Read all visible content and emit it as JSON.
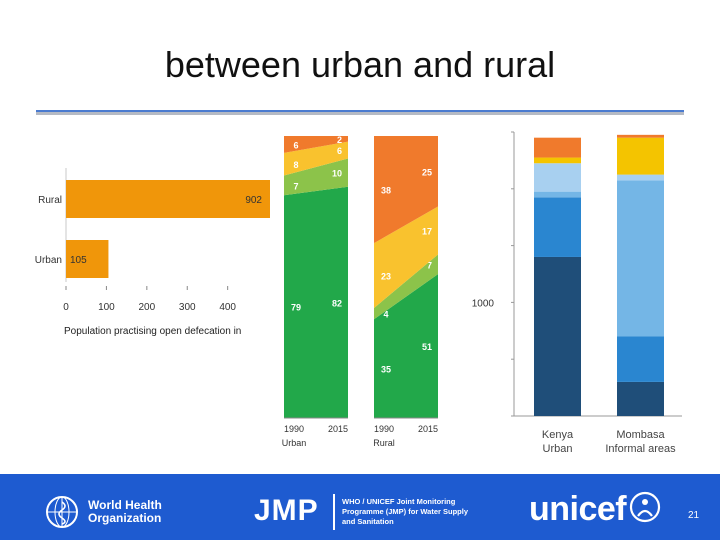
{
  "title": "between urban and rural",
  "caption": "Population practising open defecation in",
  "page_number": "21",
  "footer": {
    "who_line1": "World Health",
    "who_line2": "Organization",
    "jmp": "JMP",
    "jmp_desc": "WHO / UNICEF Joint Monitoring Programme (JMP) for Water Supply and Sanitation",
    "unicef": "unicef"
  },
  "colors": {
    "orange_bar": "#f0960a",
    "dark_orange": "#f07a2c",
    "yellow": "#f9c22e",
    "light_green": "#8cc34a",
    "green": "#22a84a",
    "navy": "#1f4e79",
    "blue": "#2a86d0",
    "light_blue": "#74b6e6",
    "pale_blue": "#a8d0f0",
    "gold": "#f4c400",
    "footer_blue": "#1e5bd0"
  },
  "chart_data": [
    {
      "type": "bar",
      "orientation": "horizontal",
      "categories": [
        "Rural",
        "Urban"
      ],
      "values": [
        902,
        105
      ],
      "value_labels": [
        "902",
        "105"
      ],
      "xticks": [
        "0",
        "100",
        "200",
        "300",
        "400"
      ],
      "xlim": [
        0,
        480
      ]
    },
    {
      "type": "area",
      "categories": [
        "1990",
        "2015"
      ],
      "panels": [
        {
          "name": "Urban",
          "layers": [
            {
              "key": "green",
              "values": [
                79,
                82
              ],
              "labels": [
                "79",
                "82"
              ]
            },
            {
              "key": "light_green",
              "values": [
                7,
                10
              ],
              "labels": [
                "7",
                "10"
              ]
            },
            {
              "key": "yellow",
              "values": [
                8,
                6
              ],
              "labels": [
                "8",
                "6"
              ]
            },
            {
              "key": "dark_orange",
              "values": [
                6,
                2
              ],
              "labels": [
                "6",
                "2"
              ]
            }
          ]
        },
        {
          "name": "Rural",
          "layers": [
            {
              "key": "green",
              "values": [
                35,
                51
              ],
              "labels": [
                "35",
                "51"
              ]
            },
            {
              "key": "light_green",
              "values": [
                4,
                7
              ],
              "labels": [
                "4",
                "7"
              ]
            },
            {
              "key": "yellow",
              "values": [
                23,
                17
              ],
              "labels": [
                "23",
                "17"
              ]
            },
            {
              "key": "dark_orange",
              "values": [
                38,
                25
              ],
              "labels": [
                "38",
                "25"
              ]
            }
          ]
        }
      ],
      "ylim": [
        0,
        100
      ]
    },
    {
      "type": "bar",
      "stacked": true,
      "categories": [
        {
          "line1": "Kenya",
          "line2": "Urban"
        },
        {
          "line1": "Mombasa",
          "line2": "Informal areas"
        }
      ],
      "ytick": "1000",
      "series": [
        {
          "key": "navy",
          "values": [
            56,
            12
          ]
        },
        {
          "key": "blue",
          "values": [
            21,
            16
          ]
        },
        {
          "key": "light_blue",
          "values": [
            2,
            55
          ]
        },
        {
          "key": "pale_blue",
          "values": [
            10,
            2
          ]
        },
        {
          "key": "gold",
          "values": [
            2,
            13
          ]
        },
        {
          "key": "dark_orange",
          "values": [
            7,
            1
          ]
        }
      ],
      "ylim": [
        0,
        100
      ]
    }
  ]
}
